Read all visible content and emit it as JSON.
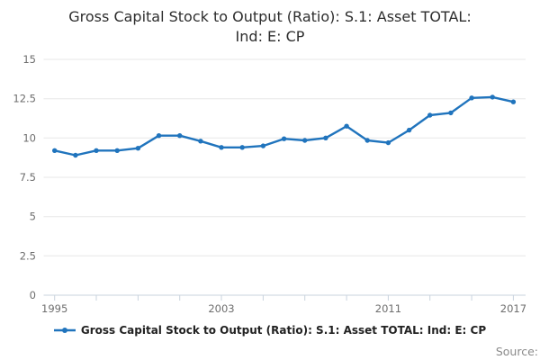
{
  "page": {
    "source_label": "Source:"
  },
  "chart_data": {
    "type": "line",
    "title": "Gross Capital Stock to Output (Ratio): S.1: Asset TOTAL: Ind: E: CP",
    "title_lines": [
      "Gross Capital Stock to Output (Ratio): S.1: Asset TOTAL:",
      "Ind: E: CP"
    ],
    "series": [
      {
        "name": "Gross Capital Stock to Output (Ratio): S.1: Asset TOTAL: Ind: E: CP",
        "x": [
          1995,
          1996,
          1997,
          1998,
          1999,
          2000,
          2001,
          2002,
          2003,
          2004,
          2005,
          2006,
          2007,
          2008,
          2009,
          2010,
          2011,
          2012,
          2013,
          2014,
          2015,
          2016,
          2017
        ],
        "values": [
          9.2,
          8.9,
          9.2,
          9.2,
          9.35,
          10.15,
          10.15,
          9.8,
          9.4,
          9.4,
          9.5,
          9.95,
          9.85,
          10.0,
          10.75,
          9.85,
          9.7,
          10.5,
          11.45,
          11.6,
          12.55,
          12.6,
          12.3
        ]
      }
    ],
    "xlabel": "",
    "ylabel": "",
    "xlim": [
      1995,
      2017
    ],
    "ylim": [
      0,
      15
    ],
    "ytick_values": [
      0,
      2.5,
      5,
      7.5,
      10,
      12.5,
      15
    ],
    "ytick_labels": [
      "0",
      "2.5",
      "5",
      "7.5",
      "10",
      "12.5",
      "15"
    ],
    "xtick_mark_years": [
      1995,
      1997,
      1999,
      2001,
      2003,
      2005,
      2007,
      2009,
      2011,
      2013,
      2015,
      2017
    ],
    "xtick_label_years": [
      "1995",
      "2003",
      "2011",
      "2017"
    ],
    "grid": "horizontal",
    "legend_position": "bottom",
    "line_color": "#2074bd",
    "grid_color": "#e7e7e7",
    "axis_color": "#c9d3de",
    "tick_text_color": "#6e6e6e"
  }
}
